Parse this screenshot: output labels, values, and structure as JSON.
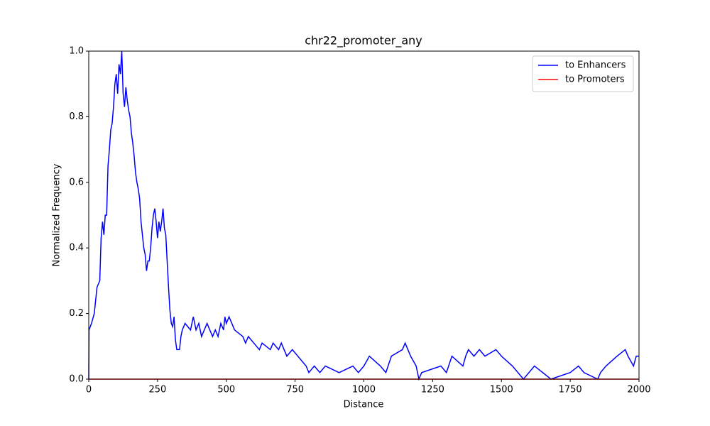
{
  "chart_data": {
    "type": "line",
    "title": "chr22_promoter_any",
    "x_label": "Distance",
    "y_label": "Normalized Frequency",
    "xlim": [
      0,
      2000
    ],
    "ylim": [
      0,
      1
    ],
    "xticks": [
      0,
      250,
      500,
      750,
      1000,
      1250,
      1500,
      1750,
      2000
    ],
    "yticks": [
      {
        "value": 0,
        "label": "0.0"
      },
      {
        "value": 0.2,
        "label": "0.2"
      },
      {
        "value": 0.4,
        "label": "0.4"
      },
      {
        "value": 0.6,
        "label": "0.6"
      },
      {
        "value": 0.8,
        "label": "0.8"
      },
      {
        "value": 1,
        "label": "1.0"
      }
    ],
    "legend": "upper right",
    "series": [
      {
        "name": "to Enhancers",
        "color": "#0000ff",
        "x": [
          0,
          1,
          10,
          20,
          25,
          30,
          40,
          45,
          50,
          55,
          60,
          65,
          70,
          75,
          80,
          85,
          90,
          95,
          100,
          105,
          110,
          115,
          120,
          125,
          130,
          135,
          140,
          145,
          150,
          155,
          160,
          165,
          170,
          175,
          180,
          185,
          190,
          195,
          200,
          205,
          210,
          215,
          220,
          225,
          230,
          235,
          240,
          245,
          250,
          255,
          260,
          265,
          270,
          275,
          280,
          285,
          290,
          295,
          300,
          305,
          310,
          315,
          320,
          330,
          335,
          340,
          350,
          370,
          380,
          390,
          400,
          410,
          420,
          430,
          440,
          450,
          460,
          470,
          480,
          490,
          495,
          500,
          510,
          520,
          530,
          560,
          570,
          580,
          600,
          620,
          630,
          660,
          670,
          690,
          700,
          710,
          720,
          740,
          790,
          800,
          820,
          840,
          860,
          910,
          960,
          980,
          1000,
          1020,
          1060,
          1080,
          1100,
          1140,
          1150,
          1170,
          1190,
          1200,
          1210,
          1280,
          1300,
          1320,
          1360,
          1370,
          1380,
          1400,
          1420,
          1440,
          1480,
          1500,
          1540,
          1560,
          1580,
          1620,
          1680,
          1750,
          1780,
          1800,
          1850,
          1860,
          1880,
          1920,
          1950,
          1960,
          1980,
          1990,
          2000
        ],
        "values": [
          0,
          0.15,
          0.17,
          0.2,
          0.24,
          0.28,
          0.3,
          0.43,
          0.48,
          0.44,
          0.5,
          0.5,
          0.65,
          0.7,
          0.76,
          0.78,
          0.83,
          0.9,
          0.93,
          0.87,
          0.96,
          0.93,
          1.0,
          0.87,
          0.83,
          0.89,
          0.85,
          0.82,
          0.8,
          0.75,
          0.72,
          0.68,
          0.63,
          0.6,
          0.58,
          0.55,
          0.48,
          0.44,
          0.4,
          0.38,
          0.33,
          0.36,
          0.36,
          0.4,
          0.46,
          0.5,
          0.52,
          0.48,
          0.43,
          0.48,
          0.45,
          0.48,
          0.52,
          0.46,
          0.44,
          0.36,
          0.28,
          0.21,
          0.17,
          0.16,
          0.19,
          0.12,
          0.09,
          0.09,
          0.13,
          0.15,
          0.17,
          0.15,
          0.19,
          0.15,
          0.17,
          0.13,
          0.15,
          0.17,
          0.15,
          0.13,
          0.15,
          0.13,
          0.17,
          0.15,
          0.19,
          0.17,
          0.19,
          0.17,
          0.15,
          0.13,
          0.11,
          0.13,
          0.11,
          0.09,
          0.11,
          0.09,
          0.11,
          0.09,
          0.11,
          0.09,
          0.07,
          0.09,
          0.04,
          0.02,
          0.04,
          0.02,
          0.04,
          0.02,
          0.04,
          0.02,
          0.04,
          0.07,
          0.04,
          0.02,
          0.07,
          0.09,
          0.11,
          0.07,
          0.04,
          0,
          0.02,
          0.04,
          0.02,
          0.07,
          0.04,
          0.07,
          0.09,
          0.07,
          0.09,
          0.07,
          0.09,
          0.07,
          0.04,
          0.02,
          0,
          0.04,
          0,
          0.02,
          0.04,
          0.02,
          0,
          0.02,
          0.04,
          0.07,
          0.09,
          0.07,
          0.04,
          0.07,
          0.07
        ]
      },
      {
        "name": "to Promoters",
        "color": "#ff0000",
        "x": [
          0,
          2000
        ],
        "values": [
          0,
          0
        ]
      }
    ]
  }
}
